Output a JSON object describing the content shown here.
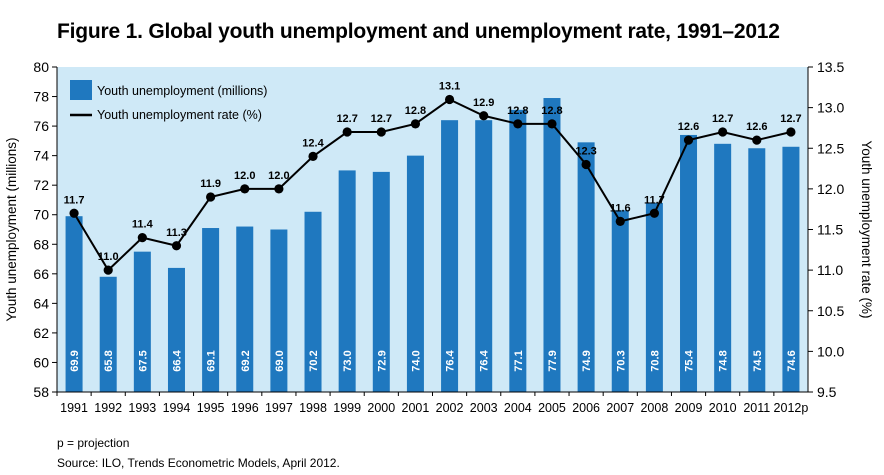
{
  "title": "Figure 1. Global youth unemployment and unemployment rate, 1991–2012",
  "notes": {
    "projection": "p = projection",
    "source": "Source: ILO, Trends Econometric Models, April 2012."
  },
  "colors": {
    "plot_background": "#cfe9f7",
    "bar": "#1f78bf",
    "line": "#000000"
  },
  "chart_data": {
    "type": "bar",
    "categories": [
      "1991",
      "1992",
      "1993",
      "1994",
      "1995",
      "1996",
      "1997",
      "1998",
      "1999",
      "2000",
      "2001",
      "2002",
      "2003",
      "2004",
      "2005",
      "2006",
      "2007",
      "2008",
      "2009",
      "2010",
      "2011",
      "2012p"
    ],
    "series": [
      {
        "name": "Youth unemployment (millions)",
        "type": "bar",
        "axis": "left",
        "values": [
          69.9,
          65.8,
          67.5,
          66.4,
          69.1,
          69.2,
          69.0,
          70.2,
          73.0,
          72.9,
          74.0,
          76.4,
          76.4,
          77.1,
          77.9,
          74.9,
          70.3,
          70.8,
          75.4,
          74.8,
          74.5,
          74.6
        ],
        "labels": [
          "69.9",
          "65.8",
          "67.5",
          "66.4",
          "69.1",
          "69.2",
          "69.0",
          "70.2",
          "73.0",
          "72.9",
          "74.0",
          "76.4",
          "76.4",
          "77.1",
          "77.9",
          "74.9",
          "70.3",
          "70.8",
          "75.4",
          "74.8",
          "74.5",
          "74.6"
        ]
      },
      {
        "name": "Youth unemployment rate (%)",
        "type": "line",
        "axis": "right",
        "values": [
          11.7,
          11.0,
          11.4,
          11.3,
          11.9,
          12.0,
          12.0,
          12.4,
          12.7,
          12.7,
          12.8,
          13.1,
          12.9,
          12.8,
          12.8,
          12.3,
          11.6,
          11.7,
          12.6,
          12.7,
          12.6,
          12.7
        ],
        "labels": [
          "11.7",
          "11.0",
          "11.4",
          "11.3",
          "11.9",
          "12.0",
          "12.0",
          "12.4",
          "12.7",
          "12.7",
          "12.8",
          "13.1",
          "12.9",
          "12.8",
          "12.8",
          "12.3",
          "11.6",
          "11.7",
          "12.6",
          "12.7",
          "12.6",
          "12.7"
        ]
      }
    ],
    "ylabel": "Youth unemployment (millions)",
    "y2label": "Youth unemployment rate (%)",
    "ylim": [
      58,
      80
    ],
    "y2lim": [
      9.5,
      13.5
    ],
    "yticks": [
      "58",
      "60",
      "62",
      "64",
      "66",
      "68",
      "70",
      "72",
      "74",
      "76",
      "78",
      "80"
    ],
    "y2ticks": [
      "9.5",
      "10.0",
      "10.5",
      "11.0",
      "11.5",
      "12.0",
      "12.5",
      "13.0",
      "13.5"
    ],
    "legend": "top-left",
    "grid": false
  }
}
